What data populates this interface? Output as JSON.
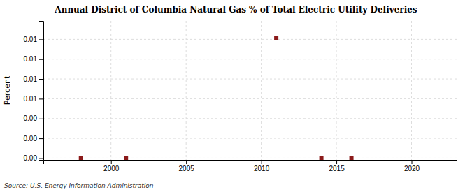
{
  "chart_data": {
    "type": "scatter",
    "title": "Annual District of Columbia Natural Gas % of Total Electric Utility Deliveries",
    "ylabel": "Percent",
    "annotation": "Source: U.S. Energy Information Administration",
    "x": [
      1998,
      2001,
      2011,
      2014,
      2016
    ],
    "values": [
      0,
      0,
      0.0101,
      0,
      0
    ],
    "color": "#8b1a1a",
    "marker": "square",
    "xlim": [
      1995.5,
      2023
    ],
    "ylim": [
      -0.00015,
      0.01155
    ],
    "xticks": [
      2000,
      2005,
      2010,
      2015,
      2020
    ],
    "yticks": [
      {
        "value": 0,
        "label": "0.00"
      },
      {
        "value": 0.001667,
        "label": "0.00"
      },
      {
        "value": 0.003333,
        "label": "0.00"
      },
      {
        "value": 0.005,
        "label": "0.01"
      },
      {
        "value": 0.006667,
        "label": "0.01"
      },
      {
        "value": 0.008333,
        "label": "0.01"
      },
      {
        "value": 0.01,
        "label": "0.01"
      }
    ],
    "grid": true
  }
}
